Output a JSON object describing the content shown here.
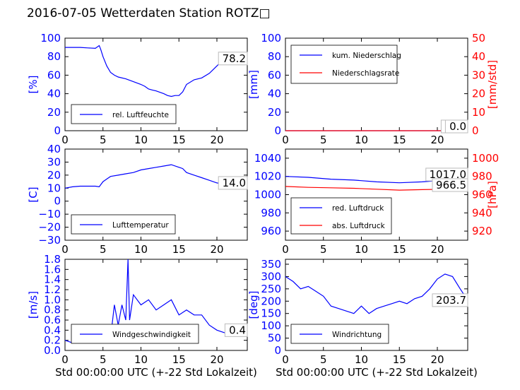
{
  "title": "2016-07-05 Wetterdaten Station ROTZ□",
  "colors": {
    "left": "#0000ff",
    "right": "#ff0000",
    "axis": "#000000"
  },
  "chart_data": [
    {
      "type": "line",
      "xlim": [
        0,
        24
      ],
      "xticks": [
        "0",
        "5",
        "10",
        "15",
        "20"
      ],
      "ylabel": "[%]",
      "ylim": [
        0,
        100
      ],
      "yticks": [
        "0",
        "20",
        "40",
        "60",
        "80",
        "100"
      ],
      "legend": {
        "placement": "lower-left",
        "entries": [
          "rel. Luftfeuchte"
        ]
      },
      "end_labels": [
        "78.2"
      ],
      "series": [
        {
          "name": "rel. Luftfeuchte",
          "color": "#0000ff",
          "x": [
            0,
            1,
            2,
            3,
            4,
            4.5,
            4.7,
            5,
            5.5,
            6,
            6.5,
            7,
            8,
            9,
            10,
            10.5,
            11,
            11.5,
            12,
            13,
            13.5,
            14,
            14.5,
            15,
            15.5,
            16,
            17,
            18,
            19,
            20,
            21,
            22,
            23,
            24
          ],
          "y": [
            90,
            90,
            90,
            89.5,
            89,
            92,
            88,
            80,
            70,
            63,
            60,
            58,
            56,
            53,
            50,
            48,
            45,
            44,
            43,
            40,
            38,
            37,
            38,
            38,
            42,
            50,
            55,
            57,
            62,
            70,
            78,
            80,
            79,
            78
          ]
        }
      ]
    },
    {
      "type": "line",
      "xlim": [
        0,
        24
      ],
      "xticks": [
        "0",
        "5",
        "10",
        "15",
        "20"
      ],
      "ylabel": "[mm]",
      "ylim": [
        0,
        100
      ],
      "yticks": [
        "0",
        "20",
        "40",
        "60",
        "80",
        "100"
      ],
      "ylabel_right": "[mm/std]",
      "ylim_right": [
        0,
        50
      ],
      "yticks_right": [
        "0",
        "10",
        "20",
        "30",
        "40",
        "50"
      ],
      "legend": {
        "placement": "upper-left",
        "entries": [
          "kum. Niederschlag",
          "Niederschlagsrate"
        ]
      },
      "end_labels": [
        "0.0",
        "0.0"
      ],
      "series": [
        {
          "name": "kum. Niederschlag",
          "color": "#0000ff",
          "x": [
            0,
            24
          ],
          "y": [
            0,
            0
          ]
        },
        {
          "name": "Niederschlagsrate",
          "color": "#ff0000",
          "x": [
            0,
            24
          ],
          "y": [
            0,
            0
          ]
        }
      ]
    },
    {
      "type": "line",
      "xlim": [
        0,
        24
      ],
      "xticks": [
        "0",
        "5",
        "10",
        "15",
        "20"
      ],
      "ylabel": "[C]",
      "ylim": [
        -30,
        40
      ],
      "yticks": [
        "−30",
        "−20",
        "−10",
        "0",
        "10",
        "20",
        "30",
        "40"
      ],
      "legend": {
        "placement": "lower-left",
        "entries": [
          "Lufttemperatur"
        ]
      },
      "end_labels": [
        "14.0"
      ],
      "series": [
        {
          "name": "Lufttemperatur",
          "color": "#0000ff",
          "x": [
            0,
            1,
            2,
            3,
            4,
            4.5,
            5,
            5.5,
            6,
            7,
            8,
            9,
            10,
            11,
            12,
            13,
            14,
            15,
            15.5,
            16,
            17,
            18,
            19,
            20,
            21,
            22,
            23,
            24
          ],
          "y": [
            10,
            11,
            11.5,
            11.5,
            11.5,
            11,
            15,
            17,
            19,
            20,
            21,
            22,
            24,
            25,
            26,
            27,
            28,
            26,
            25,
            22,
            20,
            18,
            16,
            14,
            13,
            11,
            12,
            14
          ]
        }
      ]
    },
    {
      "type": "line",
      "xlim": [
        0,
        24
      ],
      "xticks": [
        "0",
        "5",
        "10",
        "15",
        "20"
      ],
      "ylim": [
        950,
        1050
      ],
      "yticks": [
        "960",
        "980",
        "1000",
        "1020",
        "1040"
      ],
      "ylabel_right": "[hPa]",
      "ylim_right": [
        910,
        1010
      ],
      "yticks_right": [
        "920",
        "940",
        "960",
        "980",
        "1000"
      ],
      "legend": {
        "placement": "lower-left",
        "entries": [
          "red. Luftdruck",
          "abs. Luftdruck"
        ]
      },
      "end_labels": [
        "1017.0",
        "966.5"
      ],
      "series": [
        {
          "name": "red. Luftdruck",
          "color": "#0000ff",
          "axis": "left",
          "x": [
            0,
            3,
            6,
            9,
            12,
            15,
            18,
            21,
            24
          ],
          "y": [
            1020,
            1019,
            1017,
            1016,
            1014,
            1013,
            1014,
            1016,
            1017
          ]
        },
        {
          "name": "abs. Luftdruck",
          "color": "#ff0000",
          "axis": "right",
          "x": [
            0,
            3,
            6,
            9,
            12,
            15,
            18,
            21,
            24
          ],
          "y": [
            969,
            968,
            967.5,
            967,
            966,
            965,
            965.5,
            966,
            966.5
          ]
        }
      ]
    },
    {
      "type": "line",
      "xlim": [
        0,
        24
      ],
      "xticks": [
        "0",
        "5",
        "10",
        "15",
        "20"
      ],
      "xlabel": "Std 00:00:00 UTC (+-22 Std Lokalzeit)",
      "ylabel": "[m/s]",
      "ylim": [
        0,
        1.8
      ],
      "yticks": [
        "0.0",
        "0.2",
        "0.4",
        "0.6",
        "0.8",
        "1.0",
        "1.2",
        "1.4",
        "1.6",
        "1.8"
      ],
      "legend": {
        "placement": "lower-left",
        "entries": [
          "Windgeschwindigkeit"
        ]
      },
      "end_labels": [
        "0.4"
      ],
      "series": [
        {
          "name": "Windgeschwindigkeit",
          "color": "#0000ff",
          "x": [
            0,
            1,
            2,
            3,
            4,
            5,
            6,
            6.5,
            7,
            7.5,
            8,
            8.3,
            8.5,
            9,
            10,
            11,
            12,
            13,
            14,
            15,
            16,
            17,
            18,
            19,
            20,
            21,
            22,
            23,
            24
          ],
          "y": [
            0.2,
            0.15,
            0.15,
            0.2,
            0.2,
            0.2,
            0.25,
            0.9,
            0.5,
            0.9,
            0.6,
            1.8,
            0.6,
            1.1,
            0.9,
            1.0,
            0.8,
            0.9,
            1.0,
            0.7,
            0.8,
            0.7,
            0.7,
            0.5,
            0.4,
            0.35,
            0.3,
            0.3,
            0.4
          ]
        }
      ]
    },
    {
      "type": "line",
      "xlim": [
        0,
        24
      ],
      "xticks": [
        "0",
        "5",
        "10",
        "15",
        "20"
      ],
      "xlabel": "Std 00:00:00 UTC (+-22 Std Lokalzeit)",
      "ylabel": "[deg]",
      "ylim": [
        0,
        370
      ],
      "yticks": [
        "0",
        "50",
        "100",
        "150",
        "200",
        "250",
        "300",
        "350"
      ],
      "legend": {
        "placement": "lower-left",
        "entries": [
          "Windrichtung"
        ]
      },
      "end_labels": [
        "203.7"
      ],
      "series": [
        {
          "name": "Windrichtung",
          "color": "#0000ff",
          "x": [
            0,
            1,
            2,
            3,
            4,
            5,
            6,
            7,
            8,
            9,
            10,
            11,
            12,
            13,
            14,
            15,
            16,
            17,
            18,
            19,
            20,
            21,
            22,
            23,
            24
          ],
          "y": [
            300,
            280,
            250,
            260,
            240,
            220,
            180,
            170,
            160,
            150,
            180,
            150,
            170,
            180,
            190,
            200,
            190,
            210,
            220,
            250,
            290,
            310,
            300,
            250,
            204
          ]
        }
      ]
    }
  ]
}
